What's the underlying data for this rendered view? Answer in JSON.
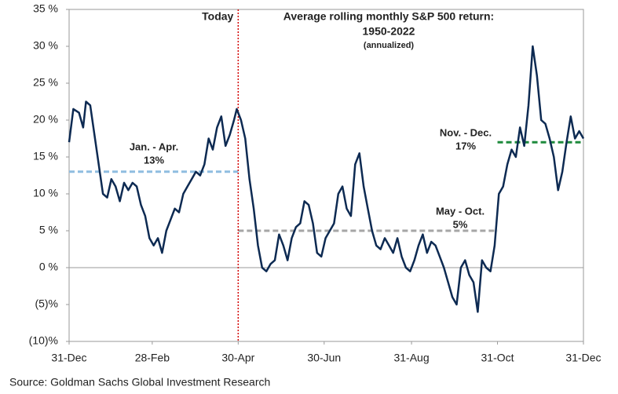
{
  "chart_data": {
    "type": "line",
    "title": "Average rolling monthly S&P 500 return:",
    "subtitle": "1950-2022",
    "note": "(annualized)",
    "source": "Source: Goldman Sachs Global Investment Research",
    "xlim": [
      0,
      365
    ],
    "xticks": [
      {
        "value": 0,
        "label": "31-Dec"
      },
      {
        "value": 59,
        "label": "28-Feb"
      },
      {
        "value": 120,
        "label": "30-Apr"
      },
      {
        "value": 181,
        "label": "30-Jun"
      },
      {
        "value": 243,
        "label": "31-Aug"
      },
      {
        "value": 304,
        "label": "31-Oct"
      },
      {
        "value": 365,
        "label": "31-Dec"
      }
    ],
    "ylim": [
      -10,
      35
    ],
    "yticks": [
      {
        "value": 35,
        "label": "35 %"
      },
      {
        "value": 30,
        "label": "30 %"
      },
      {
        "value": 25,
        "label": "25 %"
      },
      {
        "value": 20,
        "label": "20 %"
      },
      {
        "value": 15,
        "label": "15 %"
      },
      {
        "value": 10,
        "label": "10 %"
      },
      {
        "value": 5,
        "label": "5 %"
      },
      {
        "value": 0,
        "label": "0 %"
      },
      {
        "value": -5,
        "label": "(5)%"
      },
      {
        "value": -10,
        "label": "(10)%"
      }
    ],
    "zero_line": true,
    "today": {
      "label": "Today",
      "x": 120,
      "color": "#d40000"
    },
    "series": [
      {
        "color": "#0d2a52",
        "x": [
          0,
          3,
          7,
          10,
          12,
          15,
          18,
          21,
          24,
          27,
          30,
          33,
          36,
          39,
          42,
          45,
          48,
          51,
          54,
          57,
          60,
          63,
          66,
          69,
          72,
          75,
          78,
          81,
          84,
          87,
          90,
          93,
          96,
          99,
          102,
          105,
          108,
          111,
          114,
          117,
          119,
          122,
          125,
          128,
          131,
          134,
          137,
          140,
          143,
          146,
          149,
          152,
          155,
          158,
          161,
          164,
          167,
          170,
          173,
          176,
          179,
          182,
          185,
          188,
          191,
          194,
          197,
          200,
          203,
          206,
          209,
          212,
          215,
          218,
          221,
          224,
          227,
          230,
          233,
          236,
          239,
          242,
          245,
          248,
          251,
          254,
          257,
          260,
          263,
          266,
          269,
          272,
          275,
          278,
          281,
          284,
          287,
          290,
          293,
          296,
          299,
          302,
          305,
          308,
          311,
          314,
          317,
          320,
          323,
          326,
          329,
          332,
          335,
          338,
          341,
          344,
          347,
          350,
          353,
          356,
          359,
          362,
          365
        ],
        "values": [
          17,
          21.5,
          21,
          19,
          22.5,
          22,
          18,
          14,
          10,
          9.5,
          12,
          11,
          9,
          11.5,
          10.5,
          11.5,
          11,
          8.5,
          7,
          4,
          3,
          4,
          2,
          5,
          6.5,
          8,
          7.5,
          10,
          11,
          12,
          13,
          12.5,
          14,
          17.5,
          16,
          19,
          20.5,
          16.5,
          18,
          20,
          21.5,
          20,
          17.5,
          12,
          8,
          3,
          0,
          -0.5,
          0.5,
          1,
          4.5,
          3,
          1,
          4,
          5.5,
          6,
          9,
          8.5,
          6,
          2,
          1.5,
          4,
          5,
          6,
          10,
          11,
          8,
          7,
          14,
          15.5,
          11,
          8,
          5,
          3,
          2.5,
          4,
          3,
          2,
          4,
          1.5,
          0,
          -0.5,
          1,
          3,
          4.5,
          2,
          3.5,
          3,
          1.5,
          0,
          -2,
          -4,
          -5,
          0,
          1,
          -1,
          -2,
          -6,
          1,
          0,
          -0.5,
          3,
          10,
          11,
          14,
          16,
          15,
          19,
          16.5,
          22,
          30,
          26,
          20,
          19.5,
          17.5,
          15,
          10.5,
          13,
          17,
          20.5,
          17.5,
          18.5,
          17.5
        ]
      }
    ],
    "averages": [
      {
        "name": "Jan. - Apr.",
        "value": 13,
        "value_label": "13%",
        "x_range": [
          0,
          120
        ],
        "color": "#8fbde0"
      },
      {
        "name": "May - Oct.",
        "value": 5,
        "value_label": "5%",
        "x_range": [
          120,
          304
        ],
        "color": "#a6a6a6"
      },
      {
        "name": "Nov. - Dec.",
        "value": 17,
        "value_label": "17%",
        "x_range": [
          304,
          365
        ],
        "color": "#1e8a3c"
      }
    ]
  }
}
